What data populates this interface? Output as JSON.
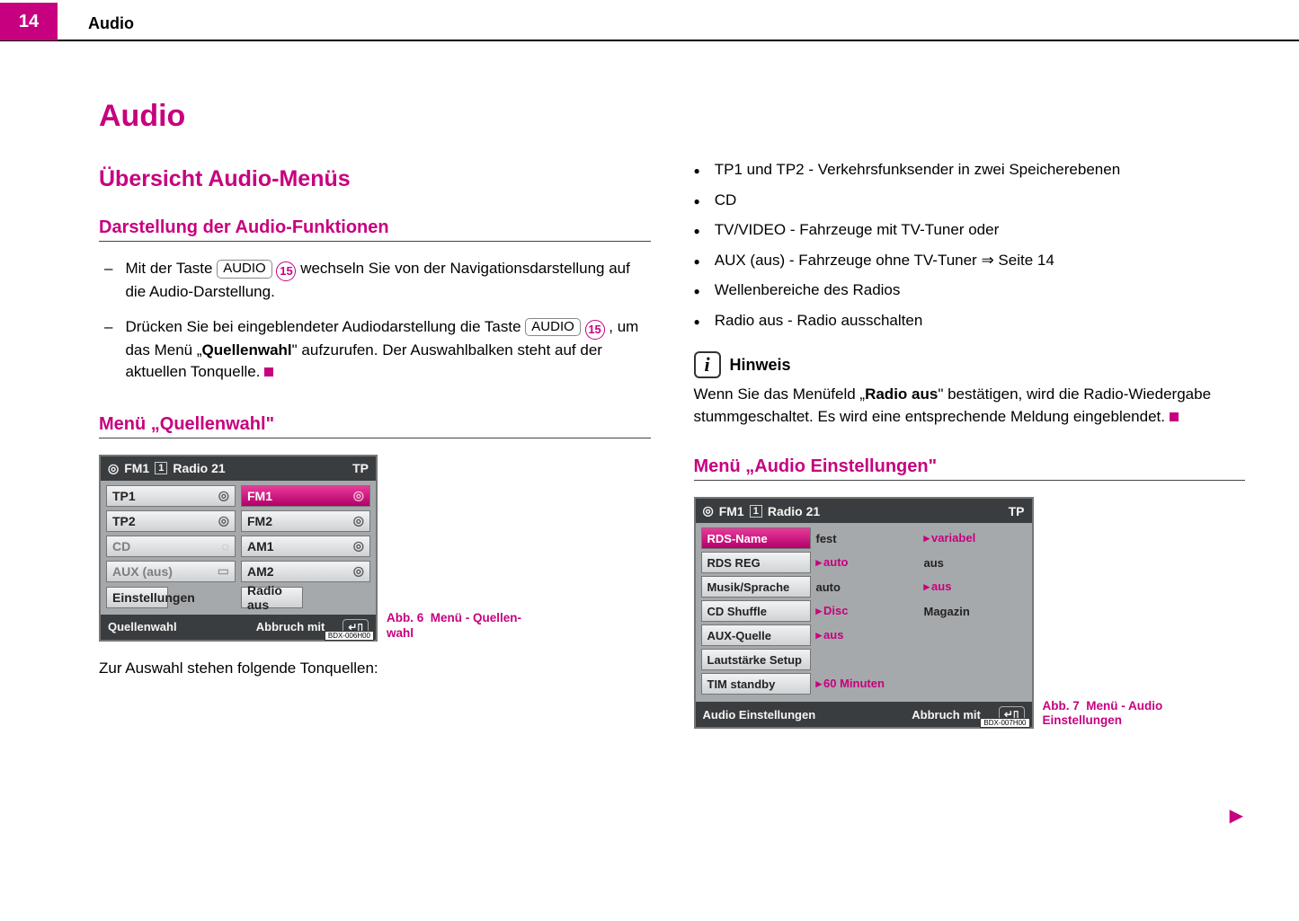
{
  "header": {
    "page_num": "14",
    "section": "Audio"
  },
  "col_left": {
    "h1": "Audio",
    "h2": "Übersicht Audio-Menüs",
    "h3_a": "Darstellung der Audio-Funktionen",
    "list_a": {
      "i1_pre": "Mit der Taste ",
      "i1_key": "AUDIO",
      "i1_num": "15",
      "i1_post": " wechseln Sie von der Navigations­darstellung auf die Audio-Darstellung.",
      "i2_pre": "Drücken Sie bei eingeblendeter Audiodarstellung die Taste ",
      "i2_key": "AUDIO",
      "i2_num": "15",
      "i2_mid": ", um das Menü „",
      "i2_bold": "Quellenwahl",
      "i2_post": "\" aufzurufen. Der Auswahlbalken steht auf der aktuellen Tonquelle. "
    },
    "h3_b": "Menü „Quellenwahl\"",
    "radio1": {
      "top_band": "FM1",
      "top_preset": "1",
      "top_station": "Radio 21",
      "top_tp": "TP",
      "cells": {
        "tp1": "TP1",
        "fm1": "FM1",
        "tp2": "TP2",
        "fm2": "FM2",
        "cd": "CD",
        "am1": "AM1",
        "aux": "AUX (aus)",
        "am2": "AM2",
        "einst": "Einstellungen",
        "radioaus": "Radio aus"
      },
      "bottom_a": "Quellenwahl",
      "bottom_b": "Abbruch mit",
      "code": "BDX-006H00"
    },
    "figcap1_a": "Abb. 6",
    "figcap1_b": "Menü - Quellen­wahl",
    "after_fig": "Zur Auswahl stehen folgende Tonquellen:"
  },
  "col_right": {
    "bullets": {
      "b1": "TP1 und TP2 - Verkehrsfunksender in zwei Speicherebenen",
      "b2": "CD",
      "b3": "TV/VIDEO - Fahrzeuge mit TV-Tuner oder",
      "b4": "AUX (aus) - Fahrzeuge ohne TV-Tuner ⇒ Seite 14",
      "b5": "Wellenbereiche des Radios",
      "b6": "Radio aus - Radio ausschalten"
    },
    "hinweis_label": "Hinweis",
    "hinweis_text_pre": "Wenn Sie das Menüfeld „",
    "hinweis_text_bold": "Radio aus",
    "hinweis_text_post": "\" bestätigen, wird die Radio-Wieder­gabe stummgeschaltet. Es wird eine entsprechende Meldung eingeblendet. ",
    "h3_c": "Menü „Audio Einstellungen\"",
    "radio2": {
      "top_band": "FM1",
      "top_preset": "1",
      "top_station": "Radio 21",
      "top_tp": "TP",
      "rows": [
        {
          "label": "RDS-Name",
          "sel": true,
          "opt1": "fest",
          "opt1a": false,
          "opt2": "variabel",
          "opt2a": true
        },
        {
          "label": "RDS REG",
          "opt1": "auto",
          "opt1a": true,
          "opt2": "aus",
          "opt2a": false
        },
        {
          "label": "Musik/Sprache",
          "opt1": "auto",
          "opt1a": false,
          "opt2": "aus",
          "opt2a": true
        },
        {
          "label": "CD Shuffle",
          "opt1": "Disc",
          "opt1a": true,
          "opt2": "Magazin",
          "opt2a": false
        },
        {
          "label": "AUX-Quelle",
          "opt1": "aus",
          "opt1a": true,
          "opt2": "",
          "opt2a": false
        },
        {
          "label": "Lautstärke Setup",
          "opt1": "",
          "opt1a": false,
          "opt2": "",
          "opt2a": false
        },
        {
          "label": "TIM standby",
          "opt1": "60 Minuten",
          "opt1a": true,
          "opt2": "",
          "opt2a": false,
          "wide": true
        }
      ],
      "bottom_a": "Audio Einstellungen",
      "bottom_b": "Abbruch mit",
      "code": "BDX-007H00"
    },
    "figcap2_a": "Abb. 7",
    "figcap2_b": "Menü - Audio Einstellungen"
  },
  "colors": {
    "accent": "#c7007f"
  }
}
